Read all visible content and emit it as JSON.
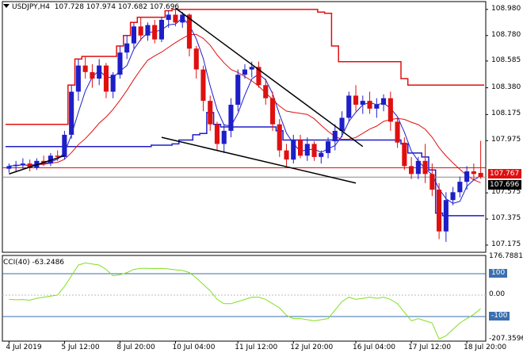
{
  "header": {
    "symbol": "USDJPY,H4",
    "ohlc": "107.728 107.974 107.682 107.696"
  },
  "indicator": {
    "label": "CCI(40) -63.2486"
  },
  "price_axis": {
    "ticks": [
      "108.980",
      "108.780",
      "108.585",
      "108.380",
      "108.175",
      "107.975",
      "107.575",
      "107.375",
      "107.175"
    ],
    "current_bid": "107.696",
    "line_label": "107.767"
  },
  "cci_axis": {
    "ticks": [
      "176.7881",
      "100",
      "0.00",
      "-100",
      "-207.3596"
    ]
  },
  "time_axis": {
    "ticks": [
      "4 Jul 2019",
      "5 Jul 12:00",
      "8 Jul 20:00",
      "10 Jul 04:00",
      "11 Jul 12:00",
      "12 Jul 20:00",
      "16 Jul 04:00",
      "17 Jul 12:00",
      "18 Jul 20:00"
    ]
  },
  "colors": {
    "bull": "#1e1ec8",
    "bear": "#e01010",
    "envelope": "#e01010",
    "donchian_low": "#1e1ec8",
    "ma_fast": "#1e1ec8",
    "ma_slow": "#e01010",
    "cci_line": "#80e020",
    "level_line": "#3a6fb0"
  },
  "chart_data": {
    "type": "candlestick",
    "symbol": "USDJPY",
    "timeframe": "H4",
    "ylim": [
      107.12,
      109.04
    ],
    "candles": [
      [
        107.76,
        107.8,
        107.73,
        107.78
      ],
      [
        107.78,
        107.82,
        107.74,
        107.79
      ],
      [
        107.79,
        107.84,
        107.76,
        107.8
      ],
      [
        107.8,
        107.83,
        107.74,
        107.77
      ],
      [
        107.77,
        107.84,
        107.75,
        107.82
      ],
      [
        107.82,
        107.86,
        107.78,
        107.8
      ],
      [
        107.8,
        107.88,
        107.78,
        107.86
      ],
      [
        107.86,
        107.9,
        107.82,
        107.85
      ],
      [
        107.85,
        108.05,
        107.83,
        108.02
      ],
      [
        108.02,
        108.4,
        107.99,
        108.35
      ],
      [
        108.35,
        108.6,
        108.28,
        108.55
      ],
      [
        108.55,
        108.62,
        108.45,
        108.5
      ],
      [
        108.5,
        108.56,
        108.38,
        108.45
      ],
      [
        108.45,
        108.6,
        108.4,
        108.55
      ],
      [
        108.55,
        108.57,
        108.3,
        108.35
      ],
      [
        108.35,
        108.5,
        108.3,
        108.48
      ],
      [
        108.48,
        108.7,
        108.45,
        108.65
      ],
      [
        108.65,
        108.78,
        108.6,
        108.72
      ],
      [
        108.72,
        108.88,
        108.68,
        108.85
      ],
      [
        108.85,
        108.92,
        108.74,
        108.78
      ],
      [
        108.78,
        108.88,
        108.74,
        108.86
      ],
      [
        108.86,
        108.9,
        108.72,
        108.75
      ],
      [
        108.75,
        108.92,
        108.73,
        108.9
      ],
      [
        108.9,
        108.97,
        108.84,
        108.94
      ],
      [
        108.94,
        108.98,
        108.85,
        108.88
      ],
      [
        108.88,
        108.96,
        108.84,
        108.94
      ],
      [
        108.94,
        108.95,
        108.62,
        108.68
      ],
      [
        108.68,
        108.7,
        108.45,
        108.52
      ],
      [
        108.52,
        108.55,
        108.2,
        108.28
      ],
      [
        108.28,
        108.32,
        108.05,
        108.1
      ],
      [
        108.1,
        108.12,
        107.9,
        107.95
      ],
      [
        107.95,
        108.1,
        107.88,
        108.05
      ],
      [
        108.05,
        108.3,
        108.0,
        108.25
      ],
      [
        108.25,
        108.52,
        108.2,
        108.48
      ],
      [
        108.48,
        108.56,
        108.45,
        108.52
      ],
      [
        108.52,
        108.58,
        108.46,
        108.54
      ],
      [
        108.54,
        108.58,
        108.38,
        108.4
      ],
      [
        108.4,
        108.45,
        108.25,
        108.3
      ],
      [
        108.3,
        108.35,
        108.05,
        108.1
      ],
      [
        108.1,
        108.14,
        107.85,
        107.9
      ],
      [
        107.9,
        107.95,
        107.78,
        107.83
      ],
      [
        107.83,
        108.02,
        107.8,
        107.98
      ],
      [
        107.98,
        108.02,
        107.84,
        107.86
      ],
      [
        107.86,
        108.0,
        107.82,
        107.95
      ],
      [
        107.95,
        107.97,
        107.82,
        107.85
      ],
      [
        107.85,
        107.9,
        107.8,
        107.88
      ],
      [
        107.88,
        108.0,
        107.84,
        107.97
      ],
      [
        107.97,
        108.1,
        107.9,
        108.05
      ],
      [
        108.05,
        108.2,
        108.0,
        108.15
      ],
      [
        108.15,
        108.35,
        108.12,
        108.32
      ],
      [
        108.32,
        108.4,
        108.2,
        108.25
      ],
      [
        108.25,
        108.32,
        108.18,
        108.28
      ],
      [
        108.28,
        108.35,
        108.18,
        108.22
      ],
      [
        108.22,
        108.3,
        108.15,
        108.25
      ],
      [
        108.25,
        108.33,
        108.2,
        108.3
      ],
      [
        108.3,
        108.35,
        108.05,
        108.12
      ],
      [
        108.12,
        108.15,
        107.92,
        107.96
      ],
      [
        107.96,
        108.0,
        107.75,
        107.78
      ],
      [
        107.78,
        107.85,
        107.68,
        107.72
      ],
      [
        107.72,
        107.85,
        107.68,
        107.82
      ],
      [
        107.82,
        107.95,
        107.65,
        107.72
      ],
      [
        107.72,
        107.8,
        107.55,
        107.6
      ],
      [
        107.6,
        107.65,
        107.22,
        107.28
      ],
      [
        107.28,
        107.58,
        107.2,
        107.52
      ],
      [
        107.52,
        107.62,
        107.48,
        107.58
      ],
      [
        107.58,
        107.7,
        107.54,
        107.66
      ],
      [
        107.66,
        107.78,
        107.6,
        107.74
      ],
      [
        107.74,
        107.8,
        107.68,
        107.72
      ],
      [
        107.728,
        107.974,
        107.682,
        107.696
      ]
    ],
    "cci": [
      -20,
      -22,
      -21,
      -24,
      -15,
      -10,
      -5,
      0,
      40,
      90,
      140,
      150,
      145,
      140,
      120,
      90,
      95,
      105,
      120,
      125,
      125,
      124,
      125,
      122,
      118,
      115,
      105,
      80,
      50,
      20,
      -20,
      -40,
      -40,
      -30,
      -20,
      -10,
      -10,
      -20,
      -40,
      -60,
      -95,
      -110,
      -110,
      -115,
      -120,
      -115,
      -110,
      -70,
      -30,
      -10,
      -20,
      -15,
      -10,
      -15,
      -10,
      -20,
      -40,
      -80,
      -120,
      -110,
      -120,
      -130,
      -205,
      -190,
      -160,
      -130,
      -110,
      -90,
      -63.2486
    ]
  }
}
